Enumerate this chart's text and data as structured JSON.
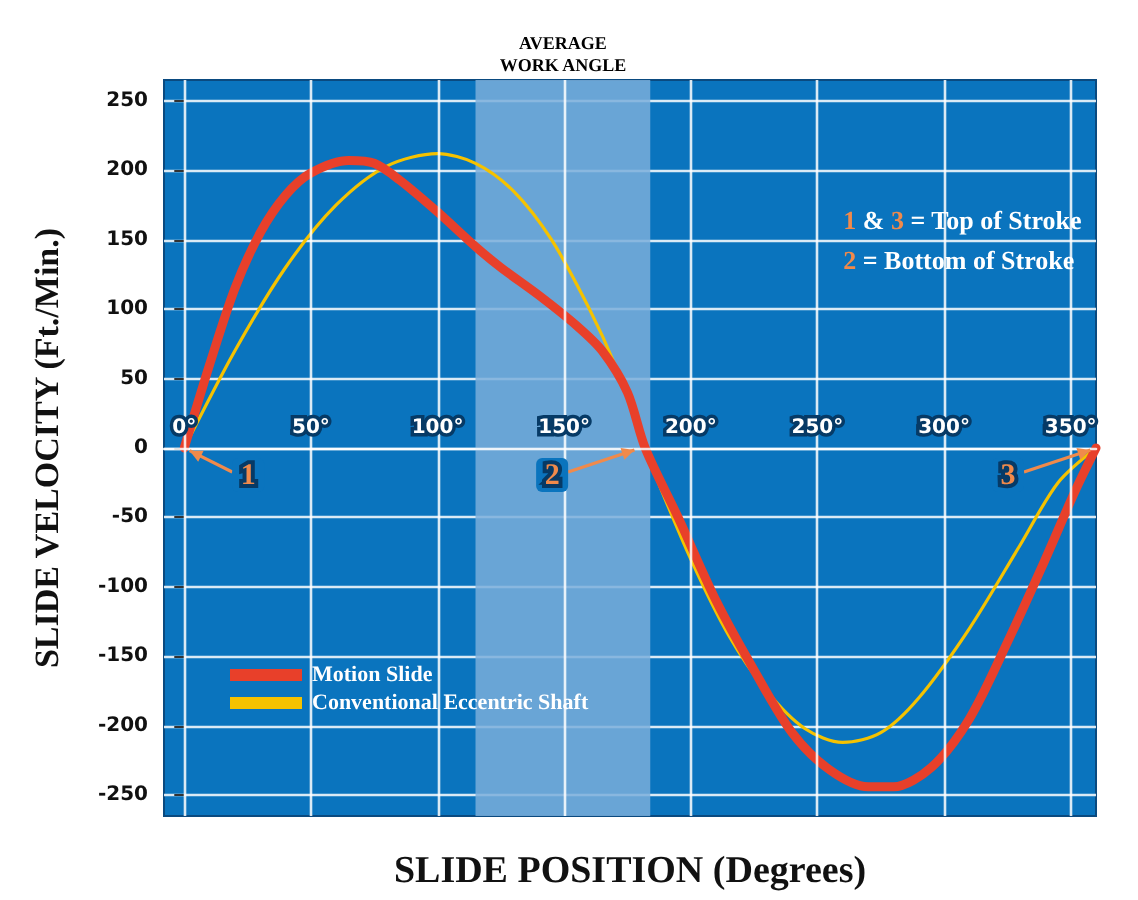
{
  "chart_data": {
    "type": "line",
    "xlabel": "SLIDE POSITION (Degrees)",
    "ylabel": "SLIDE VELOCITY (Ft./Min.)",
    "x": [
      0,
      10,
      20,
      30,
      40,
      50,
      65,
      75,
      85,
      100,
      115,
      125,
      140,
      155,
      165,
      175,
      182,
      195,
      210,
      225,
      240,
      255,
      270,
      280,
      295,
      310,
      325,
      340,
      352,
      360
    ],
    "series": [
      {
        "name": "Motion Slide",
        "color": "#e8402a",
        "values": [
          0,
          60,
          115,
          155,
          182,
          198,
          207,
          205,
          193,
          170,
          145,
          130,
          110,
          88,
          70,
          40,
          0,
          -50,
          -110,
          -160,
          -205,
          -232,
          -244,
          -244,
          -230,
          -195,
          -140,
          -80,
          -30,
          0
        ]
      },
      {
        "name": "Conventional Eccentric Shaft",
        "color": "#f5c200",
        "x": [
          0,
          20,
          40,
          60,
          80,
          100,
          115,
          130,
          145,
          160,
          170,
          180,
          185,
          200,
          215,
          230,
          245,
          260,
          275,
          290,
          310,
          330,
          345,
          360
        ],
        "values": [
          0,
          70,
          130,
          175,
          203,
          212,
          205,
          185,
          150,
          100,
          60,
          10,
          -15,
          -80,
          -135,
          -175,
          -202,
          -212,
          -205,
          -180,
          -130,
          -70,
          -25,
          0
        ]
      }
    ],
    "xlim": [
      -8,
      360
    ],
    "xticks": [
      {
        "value": 0,
        "label": "0°"
      },
      {
        "value": 50,
        "label": "50°"
      },
      {
        "value": 100,
        "label": "100°"
      },
      {
        "value": 150,
        "label": "150°"
      },
      {
        "value": 200,
        "label": "200°"
      },
      {
        "value": 250,
        "label": "250°"
      },
      {
        "value": 300,
        "label": "300°"
      },
      {
        "value": 350,
        "label": "350°"
      }
    ],
    "ylim": [
      -265,
      265
    ],
    "yticks": [
      -250,
      -200,
      -150,
      -100,
      -50,
      0,
      50,
      100,
      150,
      200,
      250
    ],
    "bands": [
      {
        "axis": "x",
        "from": 115,
        "to": 184,
        "label": "AVERAGE\nWORK ANGLE",
        "color": "#7aaedb"
      }
    ],
    "annotations": [
      "1 & 3 = Top of Stroke",
      "2 = Bottom of Stroke",
      {
        "text": "1",
        "x": 0,
        "y": 0
      },
      {
        "text": "2",
        "x": 180,
        "y": 0
      },
      {
        "text": "3",
        "x": 360,
        "y": 0
      }
    ],
    "grid": true,
    "legend": "bottom left",
    "marker": "none",
    "line_style": "solid"
  }
}
